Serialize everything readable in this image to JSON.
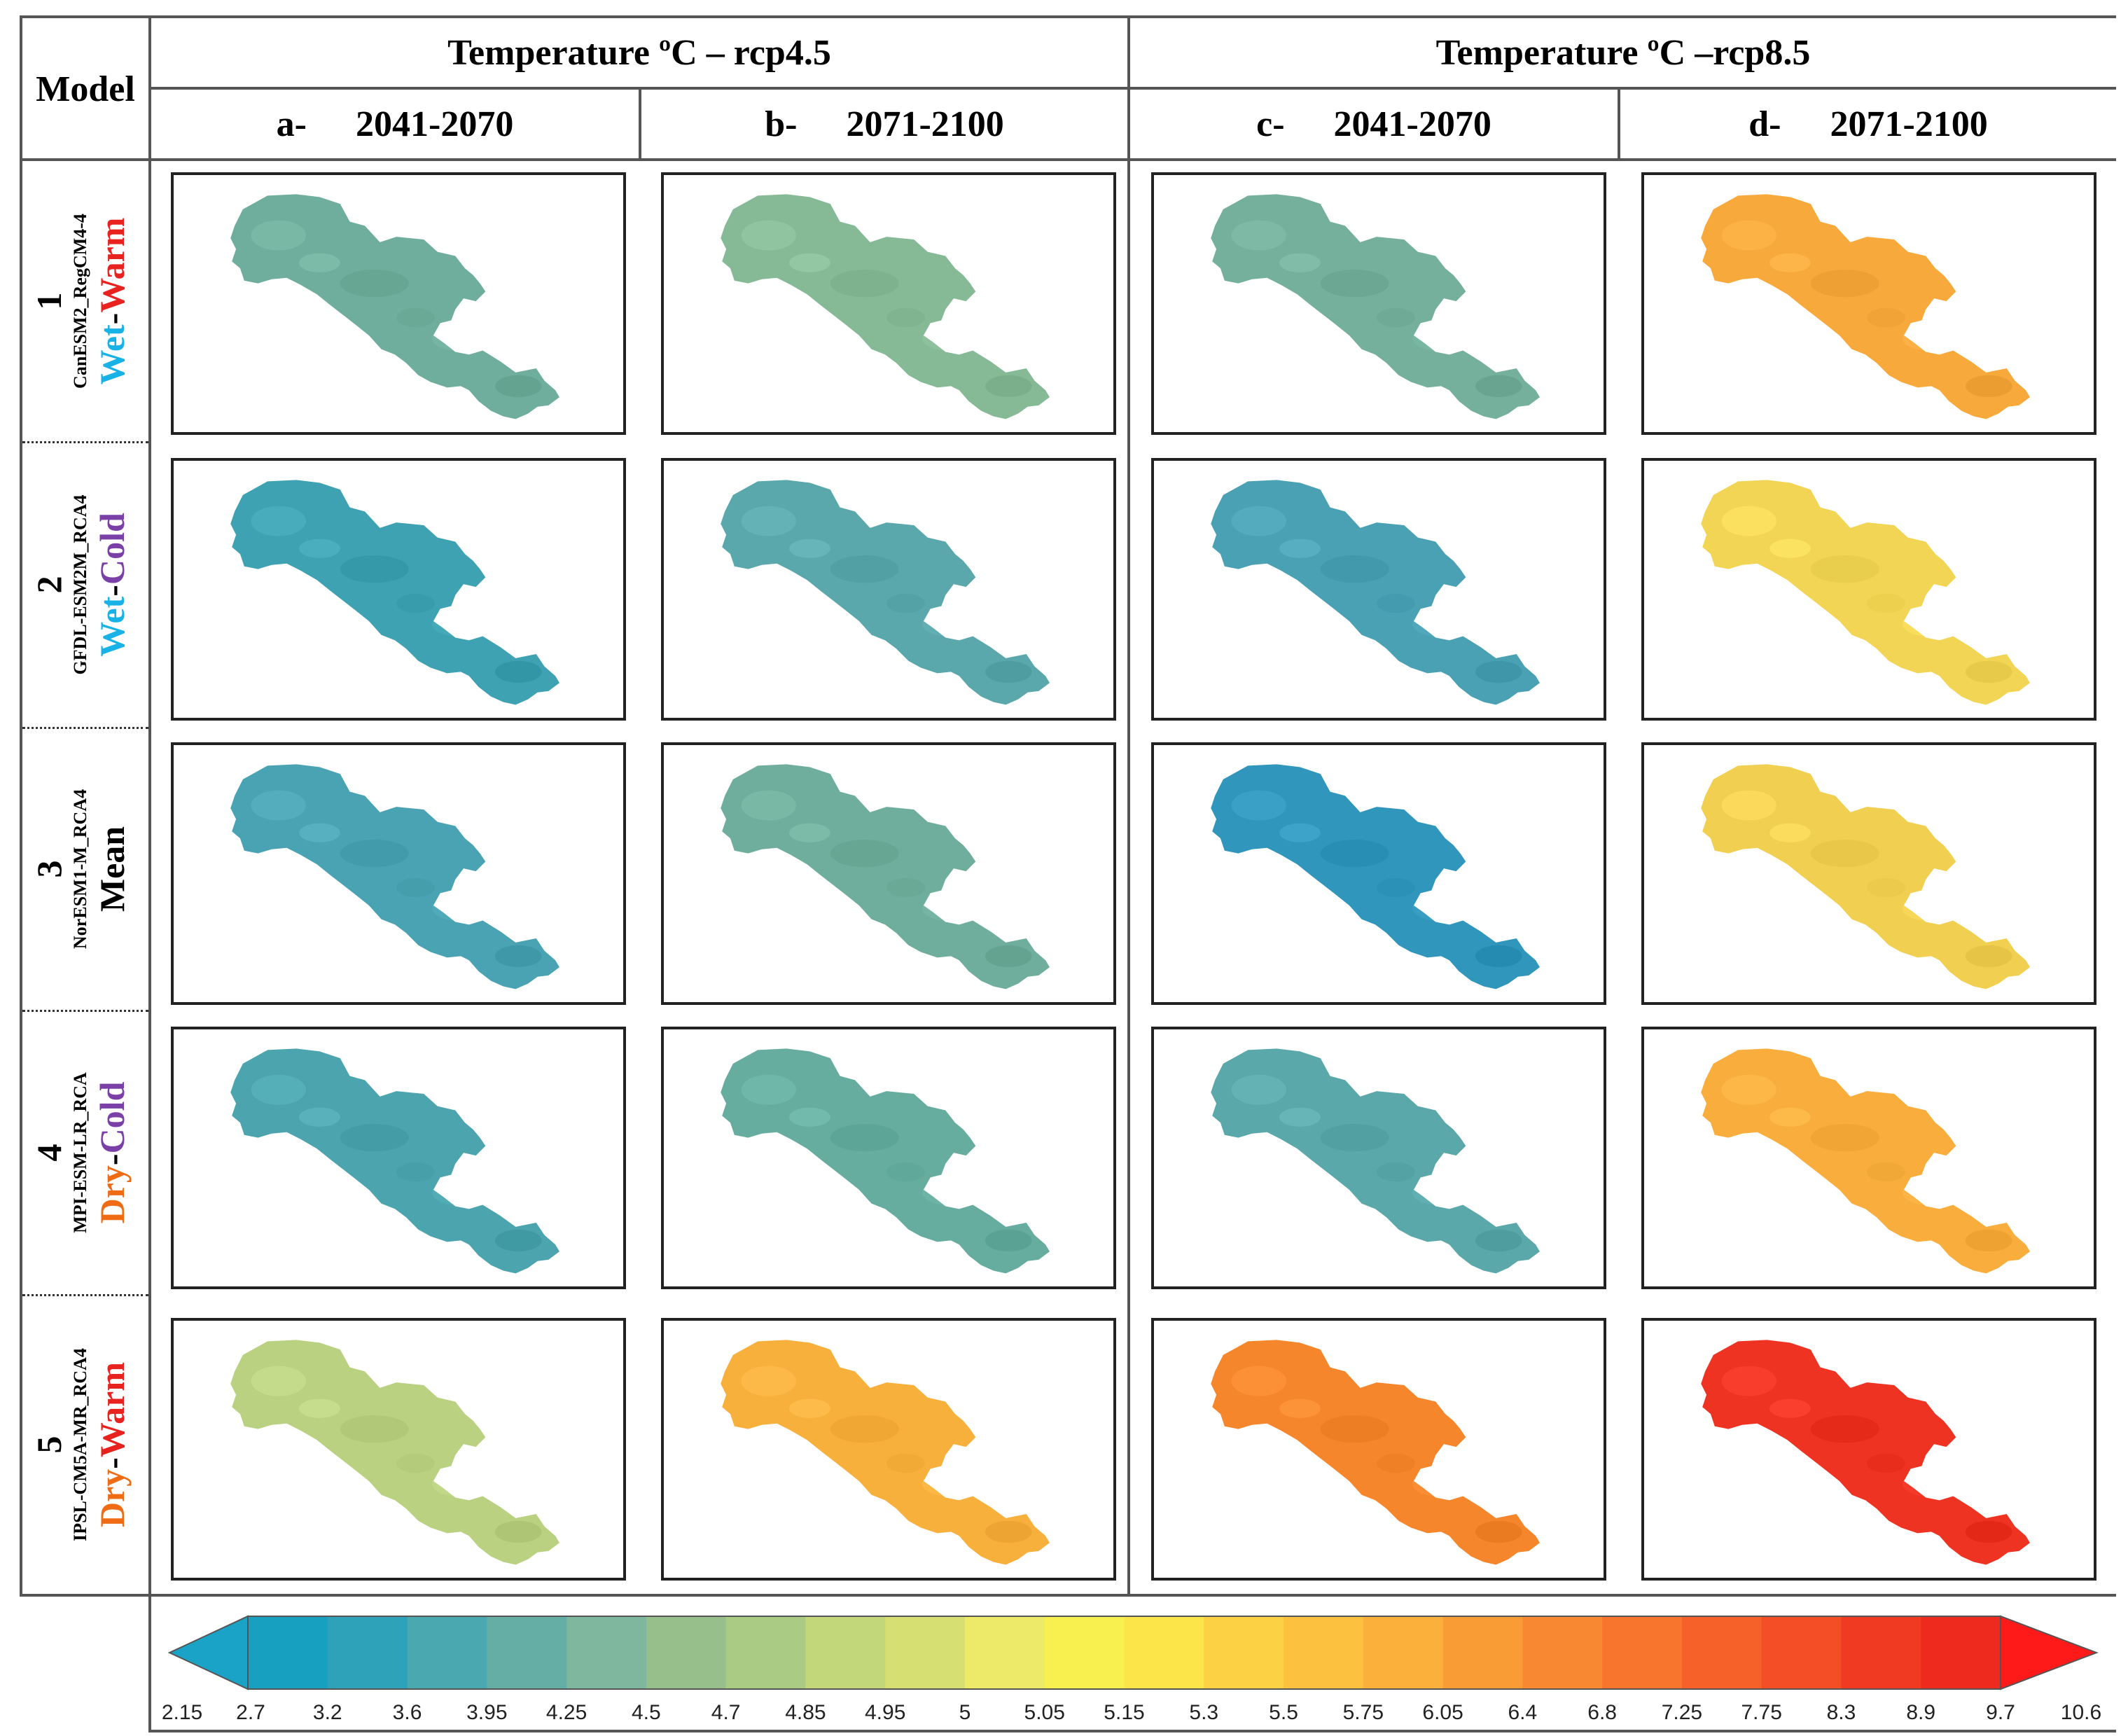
{
  "header": {
    "model_label": "Model",
    "rcp45_title": "Temperature ºC – rcp4.5",
    "rcp85_title": "Temperature ºC –rcp8.5",
    "periods": [
      {
        "letter": "a-",
        "years": "2041-2070"
      },
      {
        "letter": "b-",
        "years": "2071-2100"
      },
      {
        "letter": "c-",
        "years": "2041-2070"
      },
      {
        "letter": "d-",
        "years": "2071-2100"
      }
    ]
  },
  "rows": [
    {
      "num": "1",
      "model": "CanESM2_RegCM4-4",
      "scenario_a": "Wet",
      "scenario_b": "Warm",
      "color_a": "#19b2e6",
      "color_b": "#e8231f",
      "sep": "-"
    },
    {
      "num": "2",
      "model": "GFDL-ESM2M_RCA4",
      "scenario_a": "Wet",
      "scenario_b": "Cold",
      "color_a": "#19b2e6",
      "color_b": "#7b3fa8",
      "sep": "-"
    },
    {
      "num": "3",
      "model": "NorESM1-M_RCA4",
      "scenario_a": "Mean",
      "scenario_b": "",
      "color_a": "#000000",
      "color_b": "#000000",
      "sep": ""
    },
    {
      "num": "4",
      "model": "MPI-ESM-LR_RCA",
      "scenario_a": "Dry",
      "scenario_b": "Cold",
      "color_a": "#ef6c15",
      "color_b": "#7b3fa8",
      "sep": "-"
    },
    {
      "num": "5",
      "model": "IPSL-CM5A-MR_RCA4",
      "scenario_a": "Dry",
      "scenario_b": "Warm",
      "color_a": "#ef6c15",
      "color_b": "#e8231f",
      "sep": "-"
    }
  ],
  "map_colors": [
    [
      "#6fae9c",
      "#86ba96",
      "#74b09c",
      "#f7a93c"
    ],
    [
      "#3fa2b2",
      "#5aa8ac",
      "#4aa1b4",
      "#f2d554"
    ],
    [
      "#4aa3b2",
      "#6fae9c",
      "#3196bb",
      "#f1cf50"
    ],
    [
      "#4ca5ae",
      "#66ad9f",
      "#5aa8aa",
      "#f8ad3d"
    ],
    [
      "#b9d180",
      "#f8b03d",
      "#f6862c",
      "#ee3323"
    ]
  ],
  "chart_data": {
    "type": "heatmap",
    "title": "Temperature ºC",
    "colorbar_ticks": [
      "2.15",
      "2.7",
      "3.2",
      "3.6",
      "3.95",
      "4.25",
      "4.5",
      "4.7",
      "4.85",
      "4.95",
      "5",
      "5.05",
      "5.15",
      "5.3",
      "5.5",
      "5.75",
      "6.05",
      "6.4",
      "6.8",
      "7.25",
      "7.75",
      "8.3",
      "8.9",
      "9.7",
      "10.6"
    ],
    "colorbar_colors": [
      "#17a0c0",
      "#2ea2b8",
      "#4aa8b0",
      "#64aea6",
      "#7fb69e",
      "#96bf8c",
      "#aacb84",
      "#c2d67a",
      "#d6e072",
      "#ecea68",
      "#f8f04f",
      "#fbe548",
      "#fcd244",
      "#fcc23f",
      "#fbb03b",
      "#fa9c36",
      "#f98832",
      "#f7752d",
      "#f56129",
      "#f34e25",
      "#f03a21",
      "#ee2a1e"
    ],
    "under_color": "#1aa3c6",
    "over_color": "#ff1a1a"
  }
}
